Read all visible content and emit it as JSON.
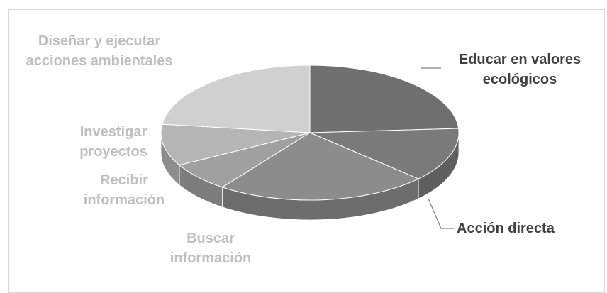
{
  "chart_data": {
    "type": "pie",
    "style": "3d",
    "title": "",
    "legend": "none",
    "slices": [
      {
        "label": "Educar en valores ecológicos",
        "value": 24,
        "color": "#6f6f6f"
      },
      {
        "label": "Acción directa",
        "value": 13,
        "color": "#7a7a7a"
      },
      {
        "label": "Buscar información",
        "value": 23,
        "color": "#8c8c8c"
      },
      {
        "label": "Recibir información",
        "value": 7,
        "color": "#a0a0a0"
      },
      {
        "label": "Investigar proyectos",
        "value": 10,
        "color": "#b5b5b5"
      },
      {
        "label": "Diseñar y ejecutar acciones ambientales",
        "value": 23,
        "color": "#d0d0d0"
      }
    ]
  },
  "labels": {
    "educar": "Educar en valores\necológicos",
    "accion": "Acción directa",
    "buscar": "Buscar\ninformación",
    "recibir": "Recibir\ninformación",
    "investigar": "Investigar\nproyectos",
    "disenar": "Diseñar y ejecutar\nacciones ambientales"
  }
}
